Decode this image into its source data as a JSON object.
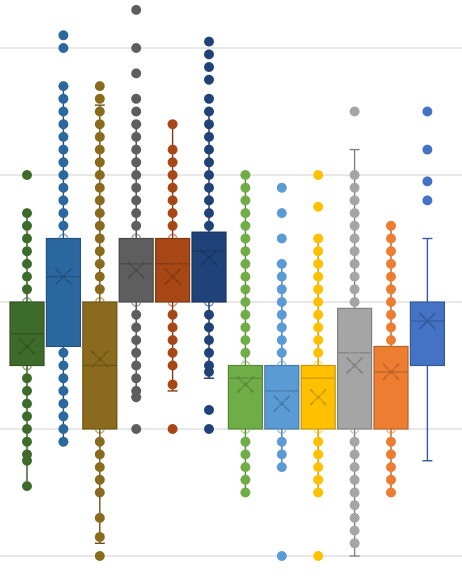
{
  "chart_data": {
    "type": "box",
    "title": "",
    "xlabel": "",
    "ylabel": "",
    "ylim": [
      0,
      4.3
    ],
    "gridlines": [
      0,
      1,
      2,
      3,
      4
    ],
    "grid": true,
    "legend": "none",
    "series": [
      {
        "color": "#3d6b2a",
        "min": 0.55,
        "q1": 1.5,
        "median": 1.75,
        "q3": 2.0,
        "max": 2.7,
        "mean": 1.65,
        "points": [
          0.55,
          0.75,
          0.8,
          0.9,
          1.0,
          1.1,
          1.2,
          1.3,
          1.4,
          1.5,
          1.6,
          1.7,
          1.8,
          1.9,
          2.0,
          2.1,
          2.2,
          2.3,
          2.4,
          2.5,
          2.6,
          2.7,
          3.0
        ]
      },
      {
        "color": "#2b68a0",
        "min": 0.9,
        "q1": 1.65,
        "median": 2.2,
        "q3": 2.5,
        "max": 3.7,
        "mean": 2.2,
        "points": [
          0.9,
          1.0,
          1.1,
          1.2,
          1.3,
          1.4,
          1.5,
          1.6,
          1.7,
          1.8,
          1.9,
          2.0,
          2.1,
          2.2,
          2.3,
          2.4,
          2.5,
          2.6,
          2.7,
          2.8,
          2.9,
          3.0,
          3.1,
          3.2,
          3.3,
          3.4,
          3.5,
          3.6,
          3.7,
          4.0,
          4.1
        ]
      },
      {
        "color": "#8a6a1c",
        "min": 0.1,
        "q1": 1.0,
        "median": 1.5,
        "q3": 2.0,
        "max": 3.55,
        "mean": 1.55,
        "points": [
          0.0,
          0.15,
          0.3,
          0.5,
          0.6,
          0.7,
          0.8,
          0.9,
          1.0,
          1.1,
          1.2,
          1.3,
          1.4,
          1.5,
          1.6,
          1.7,
          1.8,
          1.9,
          2.0,
          2.1,
          2.2,
          2.3,
          2.4,
          2.5,
          2.6,
          2.7,
          2.8,
          2.9,
          3.0,
          3.1,
          3.2,
          3.3,
          3.4,
          3.5,
          3.6,
          3.7
        ]
      },
      {
        "color": "#5e5e5e",
        "min": 1.25,
        "q1": 2.0,
        "median": 2.3,
        "q3": 2.5,
        "max": 3.4,
        "mean": 2.25,
        "points": [
          1.0,
          1.25,
          1.3,
          1.4,
          1.5,
          1.6,
          1.7,
          1.8,
          1.9,
          2.0,
          2.1,
          2.2,
          2.3,
          2.4,
          2.5,
          2.6,
          2.7,
          2.8,
          2.9,
          3.0,
          3.1,
          3.2,
          3.3,
          3.4,
          3.5,
          3.6,
          3.8,
          4.0,
          4.3
        ]
      },
      {
        "color": "#a84716",
        "min": 1.3,
        "q1": 2.0,
        "median": 2.3,
        "q3": 2.5,
        "max": 3.4,
        "mean": 2.2,
        "points": [
          1.0,
          1.35,
          1.5,
          1.6,
          1.7,
          1.8,
          1.9,
          2.0,
          2.1,
          2.2,
          2.3,
          2.4,
          2.5,
          2.6,
          2.7,
          2.8,
          2.9,
          3.0,
          3.1,
          3.2,
          3.4
        ]
      },
      {
        "color": "#1f4379",
        "min": 1.4,
        "q1": 2.0,
        "median": 2.4,
        "q3": 2.55,
        "max": 3.5,
        "mean": 2.35,
        "points": [
          1.0,
          1.15,
          1.45,
          1.5,
          1.6,
          1.7,
          1.8,
          1.9,
          2.0,
          2.1,
          2.2,
          2.3,
          2.4,
          2.5,
          2.6,
          2.7,
          2.8,
          2.9,
          3.0,
          3.1,
          3.2,
          3.3,
          3.4,
          3.5,
          3.6,
          3.75,
          3.85,
          3.95,
          4.05
        ]
      },
      {
        "color": "#70ad47",
        "min": 0.5,
        "q1": 1.0,
        "median": 1.4,
        "q3": 1.5,
        "max": 3.0,
        "mean": 1.35,
        "points": [
          0.5,
          0.6,
          0.7,
          0.8,
          0.9,
          1.0,
          1.1,
          1.2,
          1.3,
          1.4,
          1.5,
          1.6,
          1.7,
          1.8,
          1.9,
          2.0,
          2.1,
          2.2,
          2.3,
          2.4,
          2.5,
          2.6,
          2.7,
          2.8,
          2.9,
          3.0
        ]
      },
      {
        "color": "#5b9bd5",
        "min": 0.7,
        "q1": 1.0,
        "median": 1.3,
        "q3": 1.5,
        "max": 2.3,
        "mean": 1.2,
        "points": [
          0.0,
          0.7,
          0.8,
          0.9,
          1.0,
          1.1,
          1.2,
          1.3,
          1.4,
          1.5,
          1.6,
          1.7,
          1.8,
          1.9,
          2.0,
          2.1,
          2.2,
          2.3,
          2.5,
          2.7,
          2.9
        ]
      },
      {
        "color": "#ffc000",
        "min": 0.5,
        "q1": 1.0,
        "median": 1.4,
        "q3": 1.5,
        "max": 2.5,
        "mean": 1.25,
        "points": [
          0.0,
          0.5,
          0.6,
          0.7,
          0.8,
          0.9,
          1.0,
          1.1,
          1.2,
          1.3,
          1.4,
          1.5,
          1.6,
          1.7,
          1.8,
          1.9,
          2.0,
          2.1,
          2.2,
          2.3,
          2.4,
          2.5,
          2.75,
          3.0
        ]
      },
      {
        "color": "#a5a5a5",
        "min": 0.0,
        "q1": 1.0,
        "median": 1.6,
        "q3": 1.95,
        "max": 3.2,
        "mean": 1.5,
        "points": [
          0.1,
          0.2,
          0.3,
          0.4,
          0.5,
          0.6,
          0.7,
          0.8,
          0.9,
          1.0,
          1.1,
          1.2,
          1.3,
          1.4,
          1.5,
          1.6,
          1.7,
          1.8,
          1.9,
          2.0,
          2.1,
          2.2,
          2.3,
          2.4,
          2.5,
          2.6,
          2.7,
          2.8,
          2.9,
          3.0,
          3.5
        ]
      },
      {
        "color": "#ed7d31",
        "min": 0.5,
        "q1": 1.0,
        "median": 1.45,
        "q3": 1.65,
        "max": 2.6,
        "mean": 1.45,
        "points": [
          0.5,
          0.6,
          0.7,
          0.8,
          0.9,
          1.0,
          1.1,
          1.2,
          1.3,
          1.4,
          1.5,
          1.6,
          1.7,
          1.8,
          1.9,
          2.0,
          2.1,
          2.2,
          2.3,
          2.4,
          2.5,
          2.6
        ]
      },
      {
        "color": "#4472c4",
        "min": 0.75,
        "q1": 1.5,
        "median": 1.85,
        "q3": 2.0,
        "max": 2.5,
        "mean": 1.85,
        "points": [
          2.8,
          2.95,
          3.2,
          3.5
        ]
      }
    ]
  }
}
